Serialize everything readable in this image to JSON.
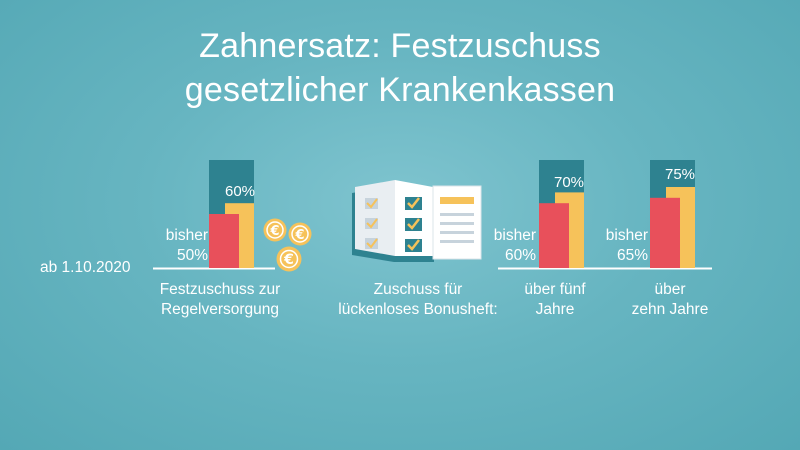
{
  "title_line1": "Zahnersatz: Festzuschuss",
  "title_line2": "gesetzlicher Krankenkassen",
  "date_label": "ab 1.10.2020",
  "icons": {
    "coins": "euro-coin-icon",
    "booklet": "bonus-booklet-icon"
  },
  "colors": {
    "background": "#63b2be",
    "old_bar": "#e8505b",
    "new_bar": "#f6c25a",
    "max_bar": "#2e8290",
    "baseline": "#ffffff"
  },
  "bonus_label_line1": "Zuschuss für",
  "bonus_label_line2": "lückenloses Bonusheft:",
  "chart_data": {
    "type": "bar",
    "unit": "%",
    "groups": [
      {
        "label_line1": "Festzuschuss zur",
        "label_line2": "Regelversorgung",
        "old_label_line1": "bisher",
        "old_label_line2": "50%",
        "new_label": "60%",
        "old": 50,
        "new": 60,
        "max": 100
      },
      {
        "label_line1": "über fünf",
        "label_line2": "Jahre",
        "old_label_line1": "bisher",
        "old_label_line2": "60%",
        "new_label": "70%",
        "old": 60,
        "new": 70,
        "max": 100
      },
      {
        "label_line1": "über",
        "label_line2": "zehn Jahre",
        "old_label_line1": "bisher",
        "old_label_line2": "65%",
        "new_label": "75%",
        "old": 65,
        "new": 75,
        "max": 100
      }
    ]
  }
}
